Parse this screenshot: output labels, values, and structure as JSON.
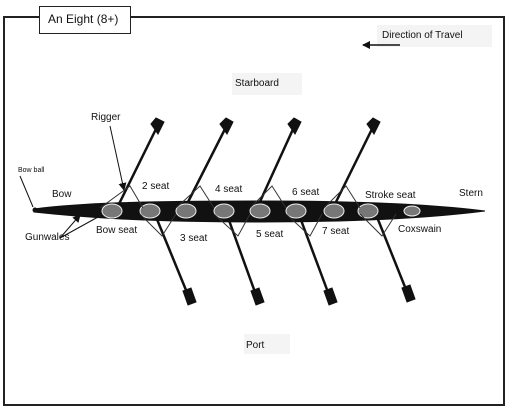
{
  "title": "An Eight (8+)",
  "labels": {
    "direction": "Direction of Travel",
    "starboard": "Starboard",
    "port": "Port",
    "rigger": "Rigger",
    "bow_ball": "Bow ball",
    "bow": "Bow",
    "gunwales": "Gunwales",
    "bow_seat": "Bow seat",
    "seat2": "2 seat",
    "seat3": "3 seat",
    "seat4": "4 seat",
    "seat5": "5 seat",
    "seat6": "6 seat",
    "seat7": "7 seat",
    "stroke_seat": "Stroke seat",
    "coxswain": "Coxswain",
    "stern": "Stern"
  }
}
